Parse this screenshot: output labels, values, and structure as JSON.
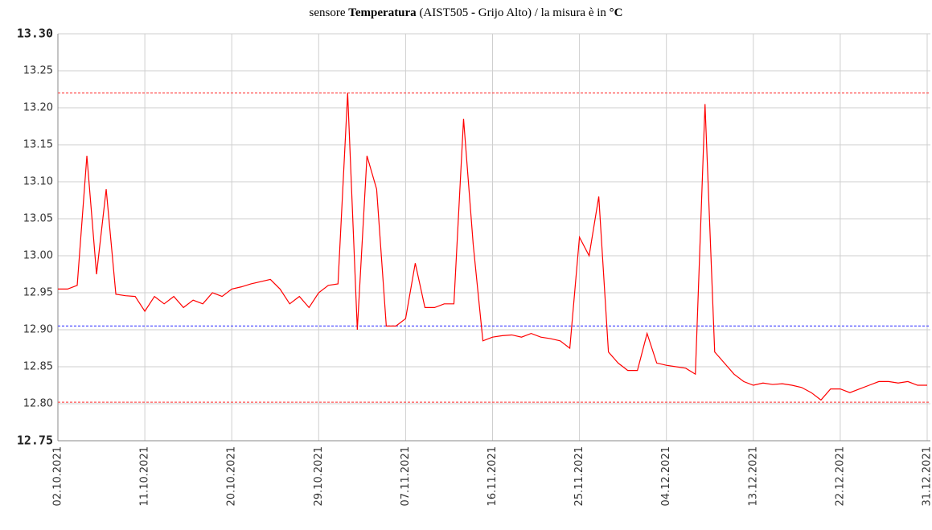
{
  "chart_data": {
    "type": "line",
    "title": [
      "sensore ",
      "Temperatura",
      " (AIST505 ",
      "-",
      " Grijo Alto) / la misura è in ",
      "°C"
    ],
    "x": [
      "02.10.2021",
      "03.10.2021",
      "04.10.2021",
      "05.10.2021",
      "06.10.2021",
      "07.10.2021",
      "08.10.2021",
      "09.10.2021",
      "10.10.2021",
      "11.10.2021",
      "12.10.2021",
      "13.10.2021",
      "14.10.2021",
      "15.10.2021",
      "16.10.2021",
      "17.10.2021",
      "18.10.2021",
      "19.10.2021",
      "20.10.2021",
      "21.10.2021",
      "22.10.2021",
      "23.10.2021",
      "24.10.2021",
      "25.10.2021",
      "26.10.2021",
      "27.10.2021",
      "28.10.2021",
      "29.10.2021",
      "30.10.2021",
      "31.10.2021",
      "01.11.2021",
      "02.11.2021",
      "03.11.2021",
      "04.11.2021",
      "05.11.2021",
      "06.11.2021",
      "07.11.2021",
      "08.11.2021",
      "09.11.2021",
      "10.11.2021",
      "11.11.2021",
      "12.11.2021",
      "13.11.2021",
      "14.11.2021",
      "15.11.2021",
      "16.11.2021",
      "17.11.2021",
      "18.11.2021",
      "19.11.2021",
      "20.11.2021",
      "21.11.2021",
      "22.11.2021",
      "23.11.2021",
      "24.11.2021",
      "25.11.2021",
      "26.11.2021",
      "27.11.2021",
      "28.11.2021",
      "29.11.2021",
      "30.11.2021",
      "01.12.2021",
      "02.12.2021",
      "03.12.2021",
      "04.12.2021",
      "05.12.2021",
      "06.12.2021",
      "07.12.2021",
      "08.12.2021",
      "09.12.2021",
      "10.12.2021",
      "11.12.2021",
      "12.12.2021",
      "13.12.2021",
      "14.12.2021",
      "15.12.2021",
      "16.12.2021",
      "17.12.2021",
      "18.12.2021",
      "19.12.2021",
      "20.12.2021",
      "21.12.2021",
      "22.12.2021",
      "23.12.2021",
      "24.12.2021",
      "25.12.2021",
      "26.12.2021",
      "27.12.2021",
      "28.12.2021",
      "29.12.2021",
      "30.12.2021",
      "31.12.2021"
    ],
    "series": [
      {
        "color": "#ff0000",
        "values": [
          12.955,
          12.955,
          12.96,
          13.135,
          12.975,
          13.09,
          12.948,
          12.946,
          12.945,
          12.925,
          12.945,
          12.935,
          12.945,
          12.93,
          12.94,
          12.935,
          12.95,
          12.945,
          12.955,
          12.958,
          12.962,
          12.965,
          12.968,
          12.955,
          12.935,
          12.945,
          12.93,
          12.95,
          12.96,
          12.962,
          13.22,
          12.9,
          13.135,
          13.09,
          12.905,
          12.905,
          12.915,
          12.99,
          12.93,
          12.93,
          12.935,
          12.935,
          13.185,
          13.015,
          12.885,
          12.89,
          12.892,
          12.893,
          12.89,
          12.895,
          12.89,
          12.888,
          12.885,
          12.875,
          13.025,
          13.0,
          13.08,
          12.87,
          12.855,
          12.845,
          12.845,
          12.895,
          12.855,
          12.852,
          12.85,
          12.848,
          12.84,
          13.205,
          12.87,
          12.855,
          12.84,
          12.83,
          12.825,
          12.828,
          12.826,
          12.827,
          12.825,
          12.822,
          12.815,
          12.805,
          12.82,
          12.82,
          12.815,
          12.82,
          12.825,
          12.83,
          12.83,
          12.828,
          12.83,
          12.825,
          12.825
        ]
      }
    ],
    "reference_lines": [
      {
        "value": 13.22,
        "color": "#ff5050"
      },
      {
        "value": 12.905,
        "color": "#5050ff"
      },
      {
        "value": 12.802,
        "color": "#ff5050"
      }
    ],
    "xlim": [
      "02.10.2021",
      "31.12.2021"
    ],
    "xticks": [
      "02.10.2021",
      "11.10.2021",
      "20.10.2021",
      "29.10.2021",
      "07.11.2021",
      "16.11.2021",
      "25.11.2021",
      "04.12.2021",
      "13.12.2021",
      "22.12.2021",
      "31.12.2021"
    ],
    "ylim": [
      12.75,
      13.3
    ],
    "yticks": [
      {
        "value": 12.75,
        "label": "12.75"
      },
      {
        "value": 12.8,
        "label": "12.80"
      },
      12.85,
      {
        "value": 12.9,
        "label": "12.90"
      },
      12.95,
      {
        "value": 13.0,
        "label": "13.00"
      },
      13.05,
      {
        "value": 13.1,
        "label": "13.10"
      },
      13.15,
      {
        "value": 13.2,
        "label": "13.20"
      },
      13.25,
      {
        "value": 13.3,
        "label": "13.30"
      }
    ],
    "grid": true
  }
}
